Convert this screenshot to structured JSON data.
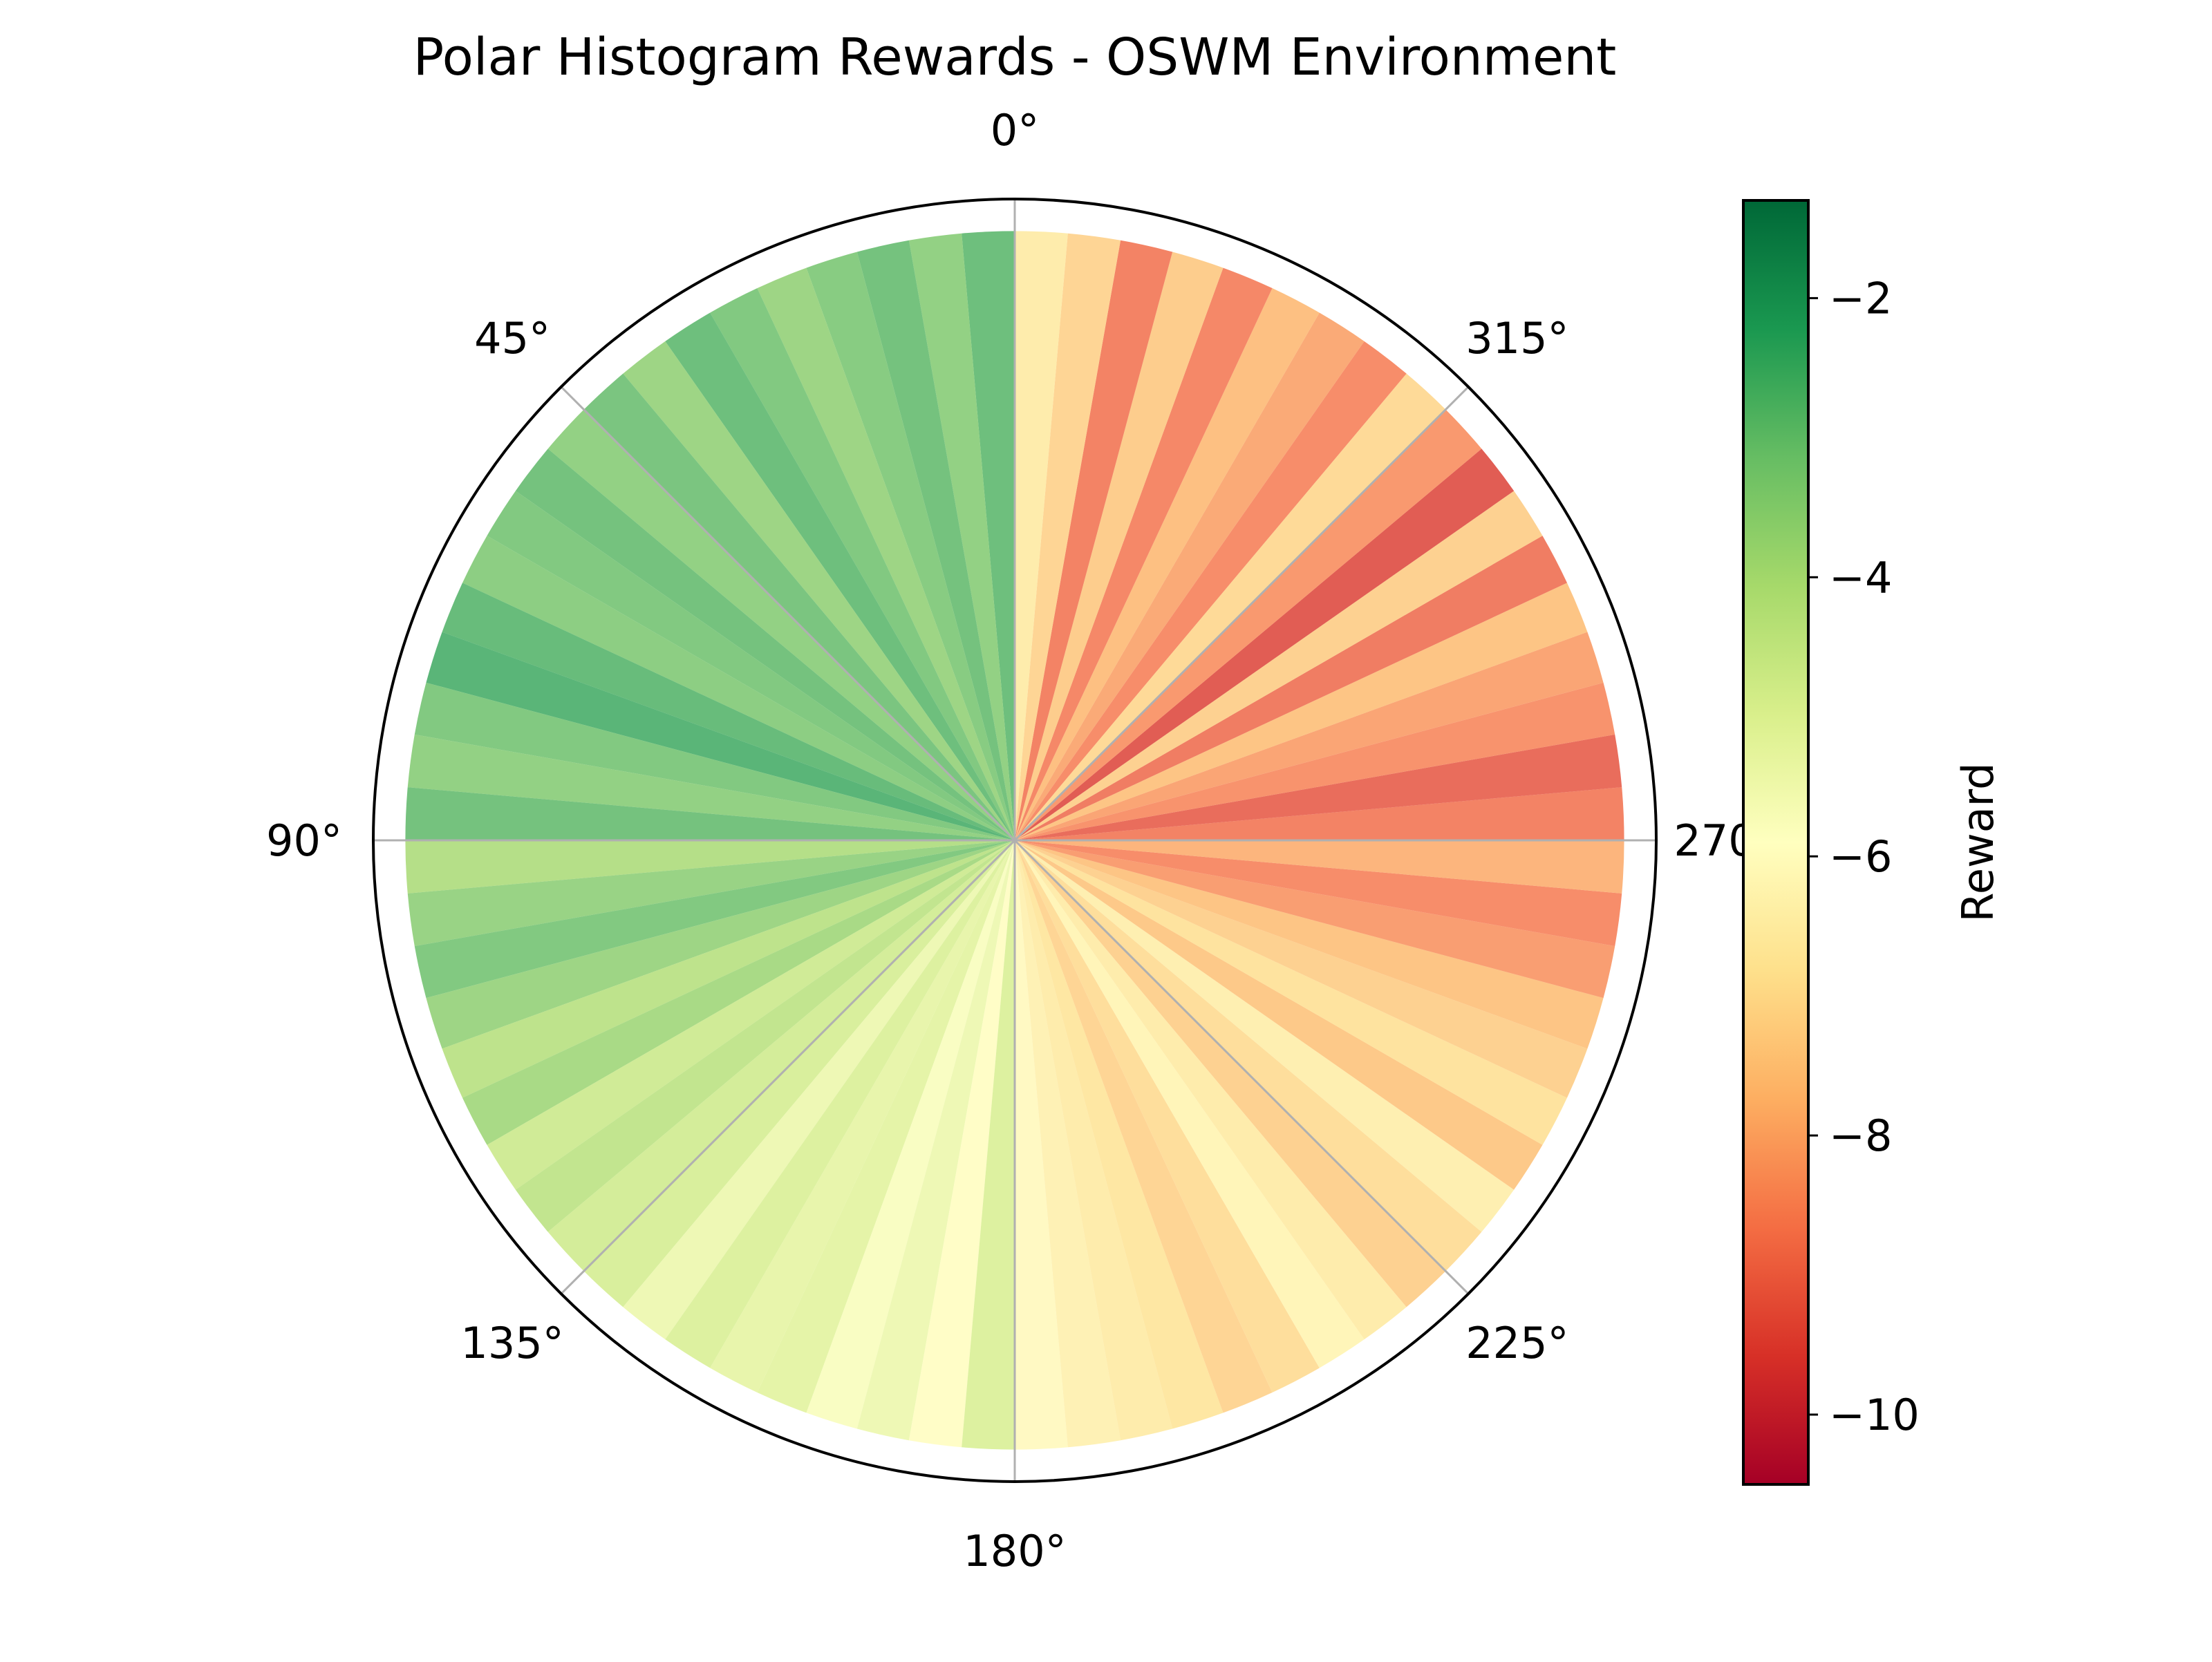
{
  "chart_data": {
    "type": "polar-bar",
    "title": "Polar Histogram Rewards - OSWM Environment",
    "theta_zero_location": "top",
    "theta_direction": "counterclockwise",
    "angular_ticks": [
      "0°",
      "45°",
      "90°",
      "135°",
      "180°",
      "225°",
      "270°",
      "315°"
    ],
    "radial_max": 1.0,
    "bar_height": 0.95,
    "bar_count": 72,
    "bin_width_degrees": 5,
    "values": [
      -2.8,
      -3.4,
      -2.9,
      -3.2,
      -3.6,
      -3.1,
      -2.8,
      -3.6,
      -3.0,
      -3.4,
      -2.9,
      -3.1,
      -3.3,
      -2.7,
      -2.5,
      -3.1,
      -3.4,
      -2.9,
      -4.0,
      -3.5,
      -3.1,
      -3.6,
      -4.2,
      -3.8,
      -4.6,
      -4.3,
      -4.7,
      -4.8,
      -5.4,
      -4.9,
      -5.2,
      -5.1,
      -5.7,
      -5.4,
      -6.0,
      -4.9,
      -6.1,
      -6.4,
      -6.6,
      -6.8,
      -7.2,
      -7.0,
      -6.3,
      -6.6,
      -7.3,
      -7.0,
      -6.5,
      -7.5,
      -6.9,
      -7.3,
      -7.6,
      -8.3,
      -8.6,
      -7.9,
      -8.8,
      -9.2,
      -8.5,
      -8.2,
      -7.6,
      -8.9,
      -7.3,
      -9.5,
      -8.4,
      -7.1,
      -8.6,
      -8.1,
      -7.7,
      -8.7,
      -7.4,
      -8.8,
      -7.2,
      -6.6
    ],
    "colorbar": {
      "label": "Reward",
      "vmin": -10.5,
      "vmax": -1.3,
      "ticks": [
        -2,
        -4,
        -6,
        -8,
        -10
      ],
      "tick_labels": [
        "−2",
        "−4",
        "−6",
        "−8",
        "−10"
      ],
      "colormap": "RdYlGn",
      "colormap_stops": [
        "#a50026",
        "#d73027",
        "#f46d43",
        "#fdae61",
        "#fee08b",
        "#ffffbf",
        "#d9ef8b",
        "#a6d96a",
        "#66bd63",
        "#1a9850",
        "#006837"
      ]
    },
    "grid": true
  }
}
